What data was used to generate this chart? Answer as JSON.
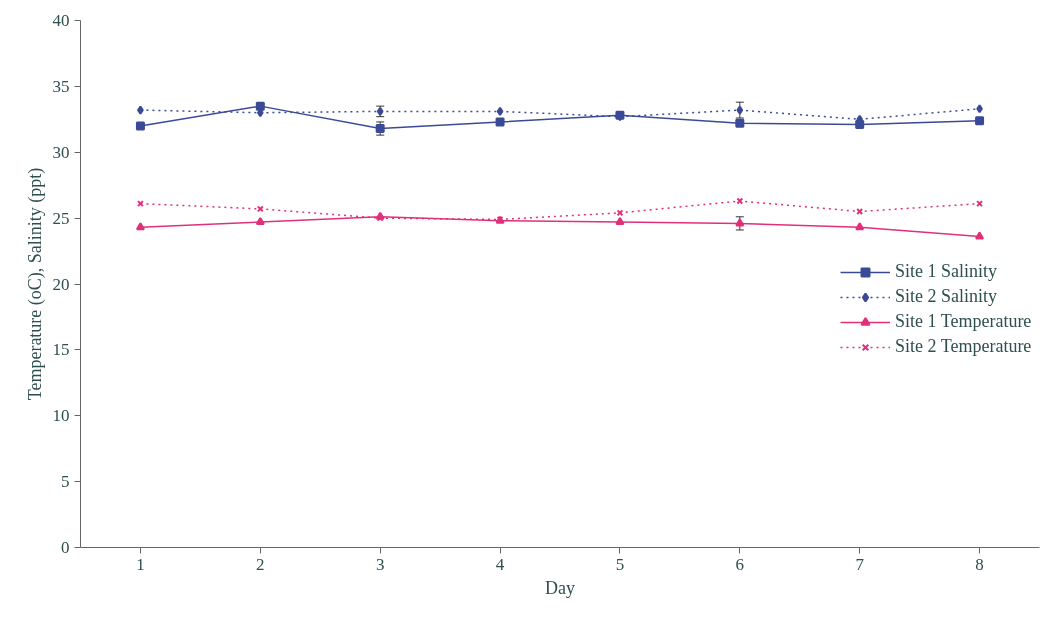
{
  "chart_data": {
    "type": "line",
    "xlabel": "Day",
    "ylabel": "Temperature (oC), Salinity (ppt)",
    "categories": [
      "1",
      "2",
      "3",
      "4",
      "5",
      "6",
      "7",
      "8"
    ],
    "series": [
      {
        "name": "Site 1 Salinity",
        "color": "#3b4a96",
        "marker": "square",
        "line_style": "solid",
        "values": [
          32.0,
          33.5,
          31.8,
          32.3,
          32.8,
          32.2,
          32.1,
          32.4
        ],
        "errors": [
          null,
          null,
          0.5,
          null,
          null,
          null,
          null,
          null
        ]
      },
      {
        "name": "Site 2 Salinity",
        "color": "#3b4a96",
        "marker": "diamond",
        "line_style": "dotted",
        "values": [
          33.2,
          33.0,
          33.1,
          33.1,
          32.7,
          33.2,
          32.5,
          33.3
        ],
        "errors": [
          null,
          null,
          0.4,
          null,
          null,
          0.6,
          null,
          null
        ]
      },
      {
        "name": "Site 1 Temperature",
        "color": "#e0307a",
        "marker": "triangle",
        "line_style": "solid",
        "values": [
          24.3,
          24.7,
          25.1,
          24.8,
          24.7,
          24.6,
          24.3,
          23.6
        ],
        "errors": [
          null,
          null,
          null,
          null,
          null,
          0.5,
          null,
          null
        ]
      },
      {
        "name": "Site 2 Temperature",
        "color": "#e0307a",
        "marker": "cross",
        "line_style": "dotted",
        "values": [
          26.1,
          25.7,
          25.0,
          24.9,
          25.4,
          26.3,
          25.5,
          26.1
        ]
      }
    ],
    "ylim": [
      0,
      40
    ],
    "yticks": [
      0,
      5,
      10,
      15,
      20,
      25,
      30,
      35,
      40
    ],
    "grid": false,
    "legend": "right"
  }
}
